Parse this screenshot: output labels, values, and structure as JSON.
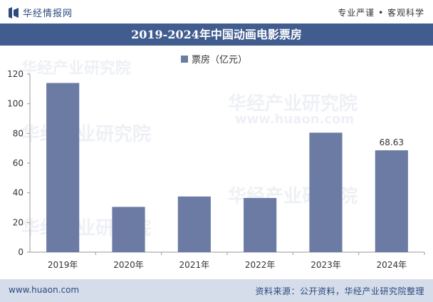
{
  "header": {
    "brand": "华经情报网",
    "slogan": "专业严谨 • 客观科学"
  },
  "chart_data": {
    "type": "bar",
    "title": "2019-2024年中国动画电影票房",
    "categories": [
      "2019年",
      "2020年",
      "2021年",
      "2022年",
      "2023年",
      "2024年"
    ],
    "series": [
      {
        "name": "票房（亿元）",
        "values": [
          114,
          30.5,
          37.5,
          36.5,
          80.5,
          68.63
        ]
      }
    ],
    "data_labels": [
      "",
      "",
      "",
      "",
      "",
      "68.63"
    ],
    "ylim": [
      0,
      120
    ],
    "yticks": [
      0,
      20,
      40,
      60,
      80,
      100,
      120
    ],
    "xlabel": "",
    "ylabel": "",
    "legend_position": "top-center",
    "grid": false,
    "colors": {
      "bar": "#6b7ba4",
      "title_band": "#415c8f",
      "footer_band": "#d5dcea"
    }
  },
  "footer": {
    "site": "www.huaon.com",
    "source": "资料来源：公开资料，华经产业研究院整理"
  },
  "watermark": {
    "cn": "华经产业研究院",
    "url": "www.huaon.com"
  }
}
